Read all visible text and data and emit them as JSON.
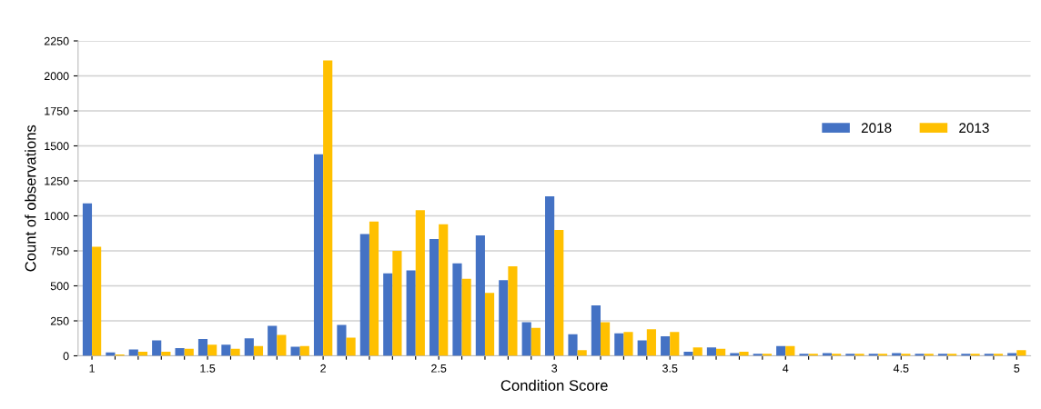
{
  "chart_data": {
    "type": "bar",
    "xlabel": "Condition Score",
    "ylabel": "Count of observations",
    "categories": [
      "1",
      null,
      null,
      null,
      null,
      "1.5",
      null,
      null,
      null,
      null,
      "2",
      null,
      null,
      null,
      null,
      "2.5",
      null,
      null,
      null,
      null,
      "3",
      null,
      null,
      null,
      null,
      "3.5",
      null,
      null,
      null,
      null,
      "4",
      null,
      null,
      null,
      null,
      "4.5",
      null,
      null,
      null,
      null,
      "5"
    ],
    "series": [
      {
        "name": "2018",
        "color": "#4472c4",
        "values": [
          1090,
          25,
          45,
          110,
          55,
          120,
          80,
          125,
          215,
          65,
          1440,
          220,
          870,
          590,
          610,
          835,
          660,
          860,
          540,
          240,
          1140,
          155,
          360,
          160,
          110,
          140,
          30,
          60,
          20,
          15,
          70,
          15,
          20,
          15,
          15,
          20,
          15,
          15,
          15,
          15,
          20
        ]
      },
      {
        "name": "2013",
        "color": "#ffc000",
        "values": [
          780,
          10,
          30,
          30,
          50,
          80,
          50,
          70,
          150,
          70,
          2110,
          130,
          960,
          750,
          1040,
          940,
          550,
          450,
          640,
          200,
          900,
          40,
          240,
          170,
          190,
          170,
          60,
          50,
          30,
          15,
          70,
          15,
          15,
          15,
          15,
          15,
          15,
          15,
          15,
          15,
          40
        ]
      }
    ],
    "ylim": [
      0,
      2250
    ],
    "yticks": [
      0,
      250,
      500,
      750,
      1000,
      1250,
      1500,
      1750,
      2000,
      2250
    ],
    "grid": "y",
    "legend": "right"
  }
}
